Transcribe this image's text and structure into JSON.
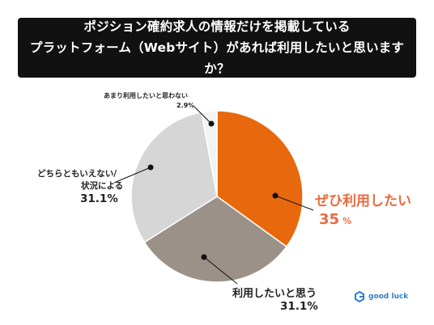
{
  "title": {
    "line1": "ポジション確約求人の情報だけを掲載している",
    "line2": "プラットフォーム（Webサイト）があれば利用したいと思いますか？"
  },
  "chart_data": {
    "type": "pie",
    "slices": [
      {
        "label": "ぜひ利用したい",
        "value": 35,
        "color": "#e8690d"
      },
      {
        "label": "利用したいと思う",
        "value": 31.1,
        "color": "#9b9188"
      },
      {
        "label": "どちらともいえない/状況による",
        "value": 31.1,
        "color": "#d6d6d6"
      },
      {
        "label": "あまり利用したいと思わない",
        "value": 2.9,
        "color": "#f3f3f3"
      }
    ]
  },
  "labels": {
    "s0_label": "ぜひ利用したい",
    "s0_pct": "35",
    "s0_unit": "%",
    "s1_label": "利用したいと思う",
    "s1_pct": "31.1%",
    "s2_line1": "どちらともいえない/",
    "s2_line2": "状況による",
    "s2_pct": "31.1%",
    "s3_label": "あまり利用したいと思わない",
    "s3_pct": "2.9%"
  },
  "logo": {
    "text": "good luck",
    "icon": "good-luck-logo-icon"
  }
}
